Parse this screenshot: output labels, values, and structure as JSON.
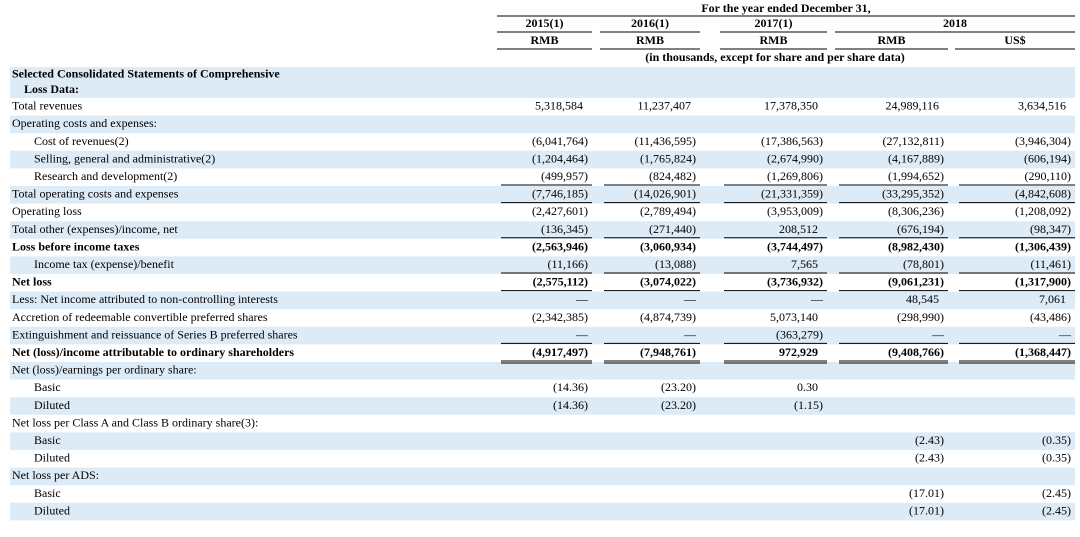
{
  "header": {
    "caption": "For the year ended December 31,",
    "years": [
      "2015(1)",
      "2016(1)",
      "2017(1)",
      "2018"
    ],
    "currencies": [
      "RMB",
      "RMB",
      "RMB",
      "RMB",
      "US$"
    ],
    "units": "(in thousands, except for share and per share data)"
  },
  "table": {
    "section": [
      "Selected Consolidated Statements of Comprehensive",
      "Loss Data:"
    ],
    "rows": [
      {
        "label": "Total revenues",
        "values": [
          "5,318,584",
          "11,237,407",
          "17,378,350",
          "24,989,116",
          "3,634,516"
        ]
      },
      {
        "label": "Operating costs and expenses:",
        "values": [
          null,
          null,
          null,
          null,
          null
        ]
      },
      {
        "label": "Cost of revenues(2)",
        "indent": 1,
        "values": [
          "(6,041,764)",
          "(11,436,595)",
          "(17,386,563)",
          "(27,132,811)",
          "(3,946,304)"
        ]
      },
      {
        "label": "Selling, general and administrative(2)",
        "indent": 1,
        "values": [
          "(1,204,464)",
          "(1,765,824)",
          "(2,674,990)",
          "(4,167,889)",
          "(606,194)"
        ]
      },
      {
        "label": "Research and development(2)",
        "indent": 1,
        "rule": "single",
        "values": [
          "(499,957)",
          "(824,482)",
          "(1,269,806)",
          "(1,994,652)",
          "(290,110)"
        ]
      },
      {
        "label": "Total operating costs and expenses",
        "rule": "single",
        "values": [
          "(7,746,185)",
          "(14,026,901)",
          "(21,331,359)",
          "(33,295,352)",
          "(4,842,608)"
        ]
      },
      {
        "label": "Operating loss",
        "values": [
          "(2,427,601)",
          "(2,789,494)",
          "(3,953,009)",
          "(8,306,236)",
          "(1,208,092)"
        ]
      },
      {
        "label": "Total other (expenses)/income, net",
        "rule": "single",
        "values": [
          "(136,345)",
          "(271,440)",
          "208,512",
          "(676,194)",
          "(98,347)"
        ]
      },
      {
        "label": "Loss before income taxes",
        "bold": true,
        "values": [
          "(2,563,946)",
          "(3,060,934)",
          "(3,744,497)",
          "(8,982,430)",
          "(1,306,439)"
        ]
      },
      {
        "label": "Income tax (expense)/benefit",
        "indent": 1,
        "rule": "single",
        "values": [
          "(11,166)",
          "(13,088)",
          "7,565",
          "(78,801)",
          "(11,461)"
        ]
      },
      {
        "label": "Net loss",
        "bold": true,
        "rule": "single",
        "values": [
          "(2,575,112)",
          "(3,074,022)",
          "(3,736,932)",
          "(9,061,231)",
          "(1,317,900)"
        ]
      },
      {
        "label": "Less: Net income attributed to non-controlling interests",
        "values": [
          "—",
          "—",
          "—",
          "48,545",
          "7,061"
        ]
      },
      {
        "label": "Accretion of redeemable convertible preferred shares",
        "values": [
          "(2,342,385)",
          "(4,874,739)",
          "5,073,140",
          "(298,990)",
          "(43,486)"
        ]
      },
      {
        "label": "Extinguishment and reissuance of Series B preferred shares",
        "rule": "single",
        "values": [
          "—",
          "—",
          "(363,279)",
          "—",
          "—"
        ]
      },
      {
        "label": "Net (loss)/income attributable to ordinary shareholders",
        "bold": true,
        "rule": "double",
        "values": [
          "(4,917,497)",
          "(7,948,761)",
          "972,929",
          "(9,408,766)",
          "(1,368,447)"
        ]
      },
      {
        "label": "Net (loss)/earnings per ordinary share:",
        "values": [
          null,
          null,
          null,
          null,
          null
        ]
      },
      {
        "label": "Basic",
        "indent": 1,
        "values": [
          "(14.36)",
          "(23.20)",
          "0.30",
          null,
          null
        ]
      },
      {
        "label": "Diluted",
        "indent": 1,
        "values": [
          "(14.36)",
          "(23.20)",
          "(1.15)",
          null,
          null
        ]
      },
      {
        "label": "Net loss per Class A and Class B ordinary share(3):",
        "values": [
          null,
          null,
          null,
          null,
          null
        ]
      },
      {
        "label": "Basic",
        "indent": 1,
        "values": [
          null,
          null,
          null,
          "(2.43)",
          "(0.35)"
        ]
      },
      {
        "label": "Diluted",
        "indent": 1,
        "values": [
          null,
          null,
          null,
          "(2.43)",
          "(0.35)"
        ]
      },
      {
        "label": "Net loss per ADS:",
        "values": [
          null,
          null,
          null,
          null,
          null
        ]
      },
      {
        "label": "Basic",
        "indent": 1,
        "values": [
          null,
          null,
          null,
          "(17.01)",
          "(2.45)"
        ]
      },
      {
        "label": "Diluted",
        "indent": 1,
        "values": [
          null,
          null,
          null,
          "(17.01)",
          "(2.45)"
        ]
      }
    ]
  }
}
